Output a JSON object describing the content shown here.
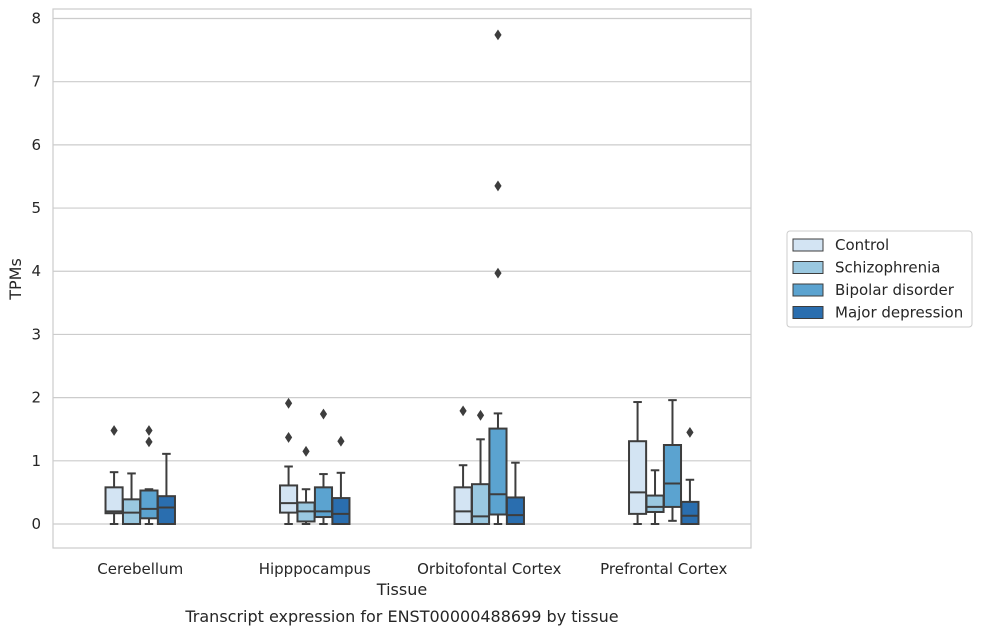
{
  "chart_data": {
    "type": "box",
    "xlabel": "Tissue",
    "ylabel": "TPMs",
    "caption": "Transcript expression for ENST00000488699 by tissue",
    "ylim": [
      -0.38,
      8.15
    ],
    "yticks": [
      0,
      1,
      2,
      3,
      4,
      5,
      6,
      7,
      8
    ],
    "grid": "horizontal",
    "legend_position": "right",
    "categories": [
      "Cerebellum",
      "Hipppocampus",
      "Orbitofontal Cortex",
      "Prefrontal Cortex"
    ],
    "series": [
      {
        "name": "Control",
        "color": "#d3e4f3",
        "boxes": [
          {
            "whislo": 0.0,
            "q1": 0.17,
            "med": 0.2,
            "q3": 0.58,
            "whishi": 0.82,
            "fliers": [
              1.48
            ]
          },
          {
            "whislo": 0.0,
            "q1": 0.18,
            "med": 0.33,
            "q3": 0.61,
            "whishi": 0.91,
            "fliers": [
              1.37,
              1.91
            ]
          },
          {
            "whislo": 0.0,
            "q1": 0.0,
            "med": 0.2,
            "q3": 0.58,
            "whishi": 0.93,
            "fliers": [
              1.79
            ]
          },
          {
            "whislo": 0.0,
            "q1": 0.16,
            "med": 0.5,
            "q3": 1.31,
            "whishi": 1.93,
            "fliers": []
          }
        ]
      },
      {
        "name": "Schizophrenia",
        "color": "#9ac8e0",
        "boxes": [
          {
            "whislo": 0.0,
            "q1": 0.0,
            "med": 0.18,
            "q3": 0.39,
            "whishi": 0.8,
            "fliers": []
          },
          {
            "whislo": 0.0,
            "q1": 0.04,
            "med": 0.2,
            "q3": 0.34,
            "whishi": 0.55,
            "fliers": [
              1.15
            ]
          },
          {
            "whislo": 0.0,
            "q1": 0.0,
            "med": 0.12,
            "q3": 0.63,
            "whishi": 1.34,
            "fliers": [
              1.72
            ]
          },
          {
            "whislo": 0.0,
            "q1": 0.19,
            "med": 0.27,
            "q3": 0.45,
            "whishi": 0.85,
            "fliers": []
          }
        ]
      },
      {
        "name": "Bipolar disorder",
        "color": "#5ba3d0",
        "boxes": [
          {
            "whislo": 0.0,
            "q1": 0.09,
            "med": 0.24,
            "q3": 0.53,
            "whishi": 0.55,
            "fliers": [
              1.3,
              1.48
            ]
          },
          {
            "whislo": 0.0,
            "q1": 0.11,
            "med": 0.2,
            "q3": 0.58,
            "whishi": 0.79,
            "fliers": [
              1.74
            ]
          },
          {
            "whislo": 0.0,
            "q1": 0.15,
            "med": 0.47,
            "q3": 1.51,
            "whishi": 1.75,
            "fliers": [
              3.97,
              5.35,
              7.74
            ]
          },
          {
            "whislo": 0.05,
            "q1": 0.27,
            "med": 0.64,
            "q3": 1.25,
            "whishi": 1.96,
            "fliers": []
          }
        ]
      },
      {
        "name": "Major depression",
        "color": "#2a6eaf",
        "boxes": [
          {
            "whislo": 0.0,
            "q1": 0.0,
            "med": 0.26,
            "q3": 0.44,
            "whishi": 1.11,
            "fliers": []
          },
          {
            "whislo": 0.0,
            "q1": 0.0,
            "med": 0.16,
            "q3": 0.41,
            "whishi": 0.81,
            "fliers": [
              1.31
            ]
          },
          {
            "whislo": 0.0,
            "q1": 0.0,
            "med": 0.14,
            "q3": 0.42,
            "whishi": 0.97,
            "fliers": []
          },
          {
            "whislo": 0.0,
            "q1": 0.0,
            "med": 0.13,
            "q3": 0.35,
            "whishi": 0.7,
            "fliers": [
              1.45
            ]
          }
        ]
      }
    ]
  }
}
